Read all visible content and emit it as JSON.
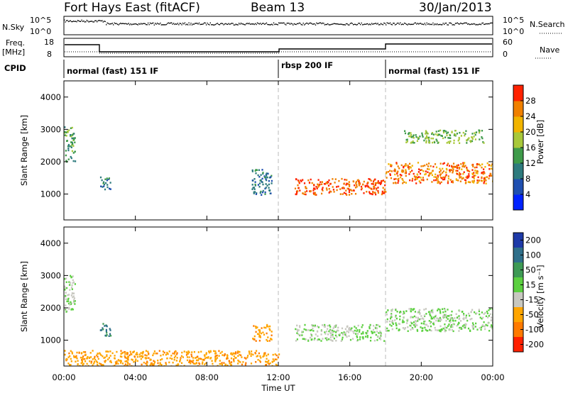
{
  "header": {
    "station": "Fort Hays East (fitACF)",
    "beam": "Beam 13",
    "date": "30/Jan/2013"
  },
  "noise_panel": {
    "left_label": "N.Sky",
    "right_label": "N.Search",
    "left_ticks": [
      "10^5",
      "10^0"
    ],
    "right_ticks": [
      "10^5",
      "10^0"
    ]
  },
  "freq_panel": {
    "left_label_line1": "Freq.",
    "left_label_line2": "[MHz]",
    "right_label": "Nave",
    "left_ticks": [
      "18",
      "8"
    ],
    "right_ticks": [
      "60",
      "0"
    ]
  },
  "cpid_panel": {
    "label": "CPID",
    "segments": [
      {
        "start_hour": 0,
        "end_hour": 12,
        "text": "normal (fast) 151 IF"
      },
      {
        "start_hour": 12,
        "end_hour": 18,
        "text": "rbsp 200 IF"
      },
      {
        "start_hour": 18,
        "end_hour": 24,
        "text": "normal (fast) 151 IF"
      }
    ]
  },
  "axes": {
    "ylabel": "Slant Range [km]",
    "xlabel": "Time UT",
    "x_ticks": [
      "00:00",
      "04:00",
      "08:00",
      "12:00",
      "16:00",
      "20:00",
      "00:00"
    ],
    "y_ticks": [
      "1000",
      "2000",
      "3000",
      "4000"
    ]
  },
  "power_colorbar": {
    "label": "Power [dB]",
    "ticks": [
      "4",
      "8",
      "12",
      "16",
      "20",
      "24",
      "28"
    ],
    "colors": [
      "#0022ff",
      "#1f4fb0",
      "#2e7b7e",
      "#3f9b4a",
      "#a8c83a",
      "#f1b400",
      "#f08000",
      "#ff2200"
    ]
  },
  "velocity_colorbar": {
    "label": "Velocity [m s⁻¹]",
    "ticks": [
      "200",
      "100",
      "50",
      "15",
      "-15",
      "-50",
      "-100",
      "-200"
    ],
    "colors": [
      "#1e3aa8",
      "#2f6f8a",
      "#3e9a55",
      "#5cd040",
      "#c8c8c0",
      "#ffa500",
      "#ff7a00",
      "#ff2000"
    ]
  },
  "chart_data": [
    {
      "type": "heatmap",
      "title": "Power",
      "x_range_hours": [
        0,
        24
      ],
      "ylim_km": [
        200,
        4500
      ],
      "colorbar_label": "Power [dB]",
      "features": [
        {
          "hours": [
            0.0,
            0.6
          ],
          "range_km": [
            2000,
            3100
          ],
          "value_db": 12
        },
        {
          "hours": [
            2.0,
            2.6
          ],
          "range_km": [
            1150,
            1550
          ],
          "value_db": 8
        },
        {
          "hours": [
            10.5,
            11.6
          ],
          "range_km": [
            1000,
            1800
          ],
          "value_db": 8
        },
        {
          "hours": [
            12.9,
            18.0
          ],
          "range_km": [
            1000,
            1500
          ],
          "value_db": 26
        },
        {
          "hours": [
            18.0,
            24.0
          ],
          "range_km": [
            1350,
            2000
          ],
          "value_db": 24
        },
        {
          "hours": [
            19.0,
            23.5
          ],
          "range_km": [
            2600,
            3000
          ],
          "value_db": 14
        }
      ]
    },
    {
      "type": "heatmap",
      "title": "Velocity",
      "x_range_hours": [
        0,
        24
      ],
      "ylim_km": [
        200,
        4500
      ],
      "colorbar_label": "Velocity [m s⁻¹]",
      "features": [
        {
          "hours": [
            0.0,
            0.6
          ],
          "range_km": [
            1900,
            3100
          ],
          "value_ms": 0
        },
        {
          "hours": [
            2.0,
            2.6
          ],
          "range_km": [
            1150,
            1550
          ],
          "value_ms": 80
        },
        {
          "hours": [
            10.5,
            11.6
          ],
          "range_km": [
            1000,
            1500
          ],
          "value_ms": -60
        },
        {
          "hours": [
            12.9,
            18.0
          ],
          "range_km": [
            1000,
            1500
          ],
          "value_ms": 0
        },
        {
          "hours": [
            18.0,
            24.0
          ],
          "range_km": [
            1300,
            2000
          ],
          "value_ms": 0
        },
        {
          "hours": [
            0.0,
            12.0
          ],
          "range_km": [
            200,
            700
          ],
          "value_ms": -60
        }
      ]
    }
  ]
}
